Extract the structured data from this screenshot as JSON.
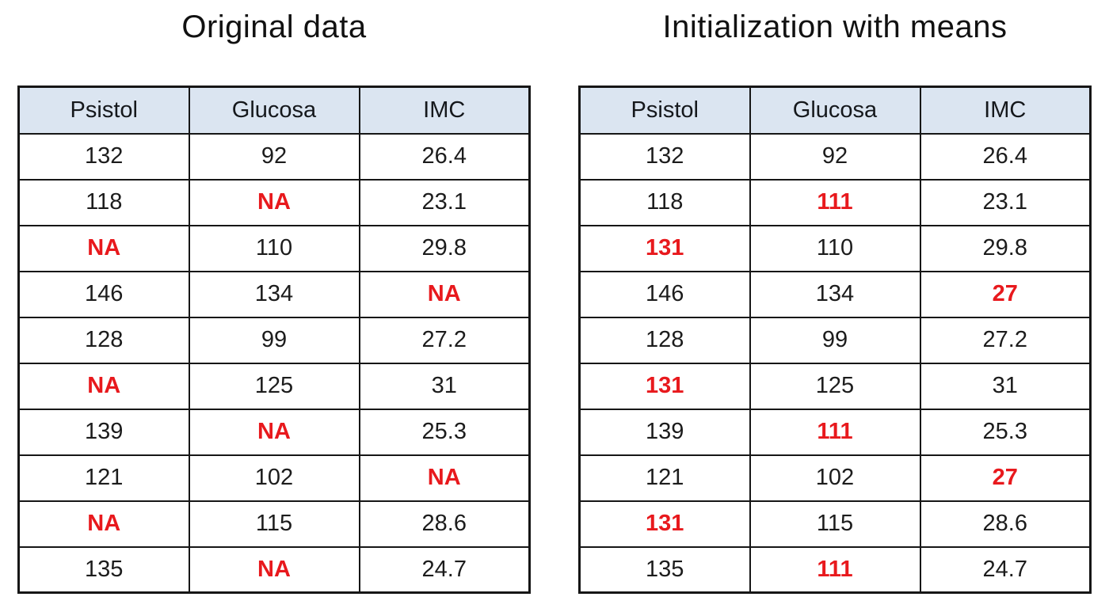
{
  "colors": {
    "background": "#ffffff",
    "header_bg": "#dbe5f1",
    "border": "#161616",
    "text": "#1c1c1c",
    "highlight_red": "#e8191d"
  },
  "tables": [
    {
      "title": "Original data",
      "headers": [
        "Psistol",
        "Glucosa",
        "IMC"
      ],
      "rows": [
        [
          {
            "text": "132"
          },
          {
            "text": "92"
          },
          {
            "text": "26.4"
          }
        ],
        [
          {
            "text": "118"
          },
          {
            "text": "NA",
            "highlight": true
          },
          {
            "text": "23.1"
          }
        ],
        [
          {
            "text": "NA",
            "highlight": true
          },
          {
            "text": "110"
          },
          {
            "text": "29.8"
          }
        ],
        [
          {
            "text": "146"
          },
          {
            "text": "134"
          },
          {
            "text": "NA",
            "highlight": true
          }
        ],
        [
          {
            "text": "128"
          },
          {
            "text": "99"
          },
          {
            "text": "27.2"
          }
        ],
        [
          {
            "text": "NA",
            "highlight": true
          },
          {
            "text": "125"
          },
          {
            "text": "31"
          }
        ],
        [
          {
            "text": "139"
          },
          {
            "text": "NA",
            "highlight": true
          },
          {
            "text": "25.3"
          }
        ],
        [
          {
            "text": "121"
          },
          {
            "text": "102"
          },
          {
            "text": "NA",
            "highlight": true
          }
        ],
        [
          {
            "text": "NA",
            "highlight": true
          },
          {
            "text": "115"
          },
          {
            "text": "28.6"
          }
        ],
        [
          {
            "text": "135"
          },
          {
            "text": "NA",
            "highlight": true
          },
          {
            "text": "24.7"
          }
        ]
      ]
    },
    {
      "title": "Initialization with means",
      "headers": [
        "Psistol",
        "Glucosa",
        "IMC"
      ],
      "rows": [
        [
          {
            "text": "132"
          },
          {
            "text": "92"
          },
          {
            "text": "26.4"
          }
        ],
        [
          {
            "text": "118"
          },
          {
            "text": "111",
            "highlight": true
          },
          {
            "text": "23.1"
          }
        ],
        [
          {
            "text": "131",
            "highlight": true
          },
          {
            "text": "110"
          },
          {
            "text": "29.8"
          }
        ],
        [
          {
            "text": "146"
          },
          {
            "text": "134"
          },
          {
            "text": "27",
            "highlight": true
          }
        ],
        [
          {
            "text": "128"
          },
          {
            "text": "99"
          },
          {
            "text": "27.2"
          }
        ],
        [
          {
            "text": "131",
            "highlight": true
          },
          {
            "text": "125"
          },
          {
            "text": "31"
          }
        ],
        [
          {
            "text": "139"
          },
          {
            "text": "111",
            "highlight": true
          },
          {
            "text": "25.3"
          }
        ],
        [
          {
            "text": "121"
          },
          {
            "text": "102"
          },
          {
            "text": "27",
            "highlight": true
          }
        ],
        [
          {
            "text": "131",
            "highlight": true
          },
          {
            "text": "115"
          },
          {
            "text": "28.6"
          }
        ],
        [
          {
            "text": "135"
          },
          {
            "text": "111",
            "highlight": true
          },
          {
            "text": "24.7"
          }
        ]
      ]
    }
  ],
  "chart_data": [
    {
      "type": "table",
      "title": "Original data",
      "columns": [
        "Psistol",
        "Glucosa",
        "IMC"
      ],
      "rows": [
        [
          132,
          92,
          26.4
        ],
        [
          118,
          "NA",
          23.1
        ],
        [
          "NA",
          110,
          29.8
        ],
        [
          146,
          134,
          "NA"
        ],
        [
          128,
          99,
          27.2
        ],
        [
          "NA",
          125,
          31
        ],
        [
          139,
          "NA",
          25.3
        ],
        [
          121,
          102,
          "NA"
        ],
        [
          "NA",
          115,
          28.6
        ],
        [
          135,
          "NA",
          24.7
        ]
      ],
      "annotations": "Missing values (NA) rendered in bold red"
    },
    {
      "type": "table",
      "title": "Initialization with means",
      "columns": [
        "Psistol",
        "Glucosa",
        "IMC"
      ],
      "rows": [
        [
          132,
          92,
          26.4
        ],
        [
          118,
          111,
          23.1
        ],
        [
          131,
          110,
          29.8
        ],
        [
          146,
          134,
          27
        ],
        [
          128,
          99,
          27.2
        ],
        [
          131,
          125,
          31
        ],
        [
          139,
          111,
          25.3
        ],
        [
          121,
          102,
          27
        ],
        [
          131,
          115,
          28.6
        ],
        [
          135,
          111,
          24.7
        ]
      ],
      "annotations": "Imputed column means (Psistol=131, Glucosa=111, IMC=27) rendered in bold red"
    }
  ]
}
